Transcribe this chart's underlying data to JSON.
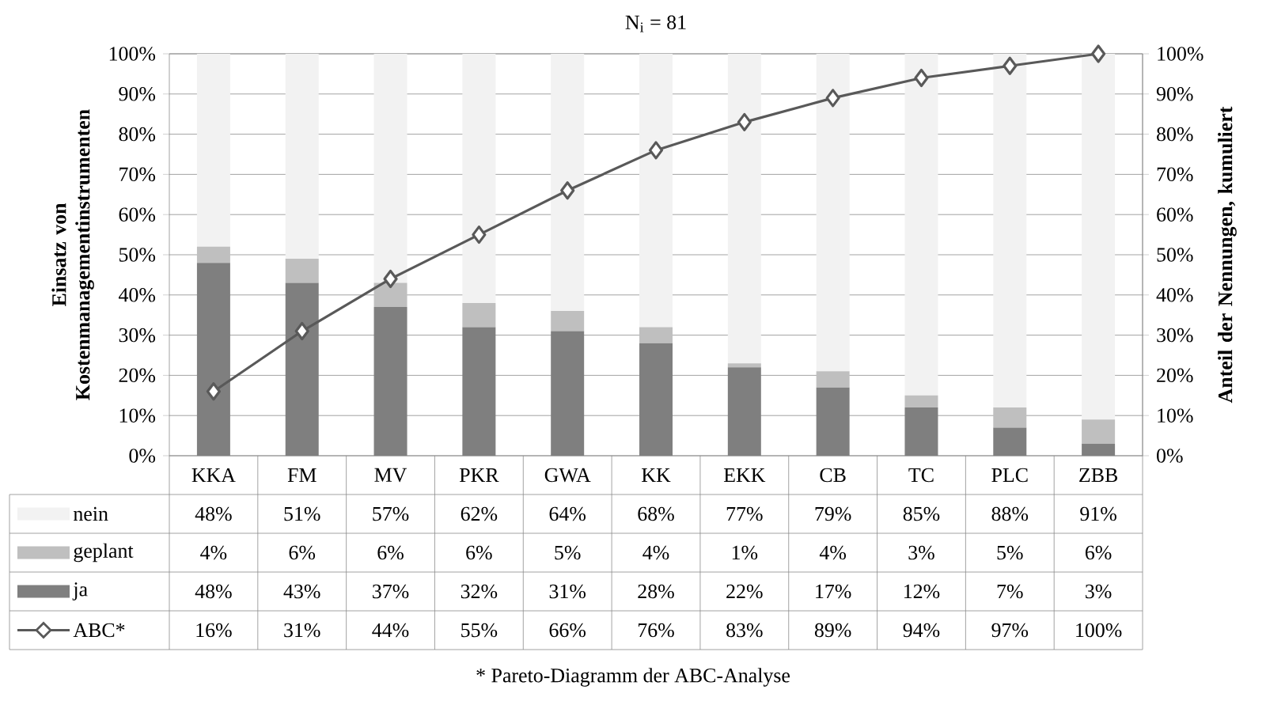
{
  "chart_data": {
    "type": "bar",
    "stacked": true,
    "title": "N$_{i}$ = 81",
    "ylabel": "Einsatz von Kostenmanagementinstrumenten",
    "y2label": "Anteil der Nennungen, kumuliert",
    "categories": [
      "KKA",
      "FM",
      "MV",
      "PKR",
      "GWA",
      "KK",
      "EKK",
      "CB",
      "TC",
      "PLC",
      "ZBB"
    ],
    "series": [
      {
        "name": "ja",
        "color": "#7f7f7f",
        "values": [
          48,
          43,
          37,
          32,
          31,
          28,
          22,
          17,
          12,
          7,
          3
        ],
        "value_labels": [
          "48%",
          "43%",
          "37%",
          "32%",
          "31%",
          "28%",
          "22%",
          "17%",
          "12%",
          "7%",
          "3%"
        ]
      },
      {
        "name": "geplant",
        "color": "#bfbfbf",
        "values": [
          4,
          6,
          6,
          6,
          5,
          4,
          1,
          4,
          3,
          5,
          6
        ],
        "value_labels": [
          "4%",
          "6%",
          "6%",
          "6%",
          "5%",
          "4%",
          "1%",
          "4%",
          "3%",
          "5%",
          "6%"
        ]
      },
      {
        "name": "nein",
        "color": "#f2f2f2",
        "values": [
          48,
          51,
          57,
          62,
          64,
          68,
          77,
          79,
          85,
          88,
          91
        ],
        "value_labels": [
          "48%",
          "51%",
          "57%",
          "62%",
          "64%",
          "68%",
          "77%",
          "79%",
          "85%",
          "88%",
          "91%"
        ]
      },
      {
        "name": "ABC*",
        "type": "line",
        "axis": "y2",
        "marker": "diamond",
        "line_style": "solid",
        "color": "#595959",
        "values": [
          16,
          31,
          44,
          55,
          66,
          76,
          83,
          89,
          94,
          97,
          100
        ],
        "value_labels": [
          "16%",
          "31%",
          "44%",
          "55%",
          "66%",
          "76%",
          "83%",
          "89%",
          "94%",
          "97%",
          "100%"
        ]
      }
    ],
    "ylim": [
      0,
      100
    ],
    "yticks": [
      {
        "value": 0,
        "label": "0%"
      },
      {
        "value": 10,
        "label": "10%"
      },
      {
        "value": 20,
        "label": "20%"
      },
      {
        "value": 30,
        "label": "30%"
      },
      {
        "value": 40,
        "label": "40%"
      },
      {
        "value": 50,
        "label": "50%"
      },
      {
        "value": 60,
        "label": "60%"
      },
      {
        "value": 70,
        "label": "70%"
      },
      {
        "value": 80,
        "label": "80%"
      },
      {
        "value": 90,
        "label": "90%"
      },
      {
        "value": 100,
        "label": "100%"
      }
    ],
    "y2lim": [
      0,
      100
    ],
    "y2ticks": [
      {
        "value": 0,
        "label": "0%"
      },
      {
        "value": 10,
        "label": "10%"
      },
      {
        "value": 20,
        "label": "20%"
      },
      {
        "value": 30,
        "label": "30%"
      },
      {
        "value": 40,
        "label": "40%"
      },
      {
        "value": 50,
        "label": "50%"
      },
      {
        "value": 60,
        "label": "60%"
      },
      {
        "value": 70,
        "label": "70%"
      },
      {
        "value": 80,
        "label": "80%"
      },
      {
        "value": 90,
        "label": "90%"
      },
      {
        "value": 100,
        "label": "100%"
      }
    ],
    "grid": "y",
    "legend": "bottom",
    "annotations": [
      "* Pareto-Diagramm der ABC-Analyse"
    ]
  }
}
